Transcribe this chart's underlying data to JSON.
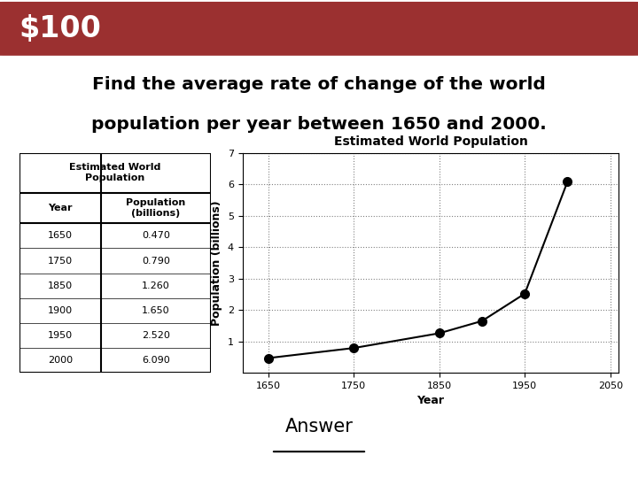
{
  "title_text": "$100",
  "title_bg_color": "#9B3030",
  "title_text_color": "#FFFFFF",
  "question_line1": "Find the average rate of change of the world",
  "question_line2": "population per year between 1650 and 2000.",
  "answer_text": "Answer",
  "table_title": "Estimated World\nPopulation",
  "table_col1_header": "Year",
  "table_col2_header": "Population\n(billions)",
  "table_data": [
    [
      1650,
      0.47
    ],
    [
      1750,
      0.79
    ],
    [
      1850,
      1.26
    ],
    [
      1900,
      1.65
    ],
    [
      1950,
      2.52
    ],
    [
      2000,
      6.09
    ]
  ],
  "chart_title": "Estimated World Population",
  "chart_xlabel": "Year",
  "chart_ylabel": "Population (billions)",
  "chart_xlim": [
    1620,
    2060
  ],
  "chart_ylim": [
    0,
    7
  ],
  "chart_xticks": [
    1650,
    1750,
    1850,
    1950,
    2050
  ],
  "chart_yticks": [
    1,
    2,
    3,
    4,
    5,
    6,
    7
  ],
  "chart_line_color": "#000000",
  "chart_marker_color": "#000000",
  "chart_marker_size": 7,
  "bg_color": "#FFFFFF"
}
